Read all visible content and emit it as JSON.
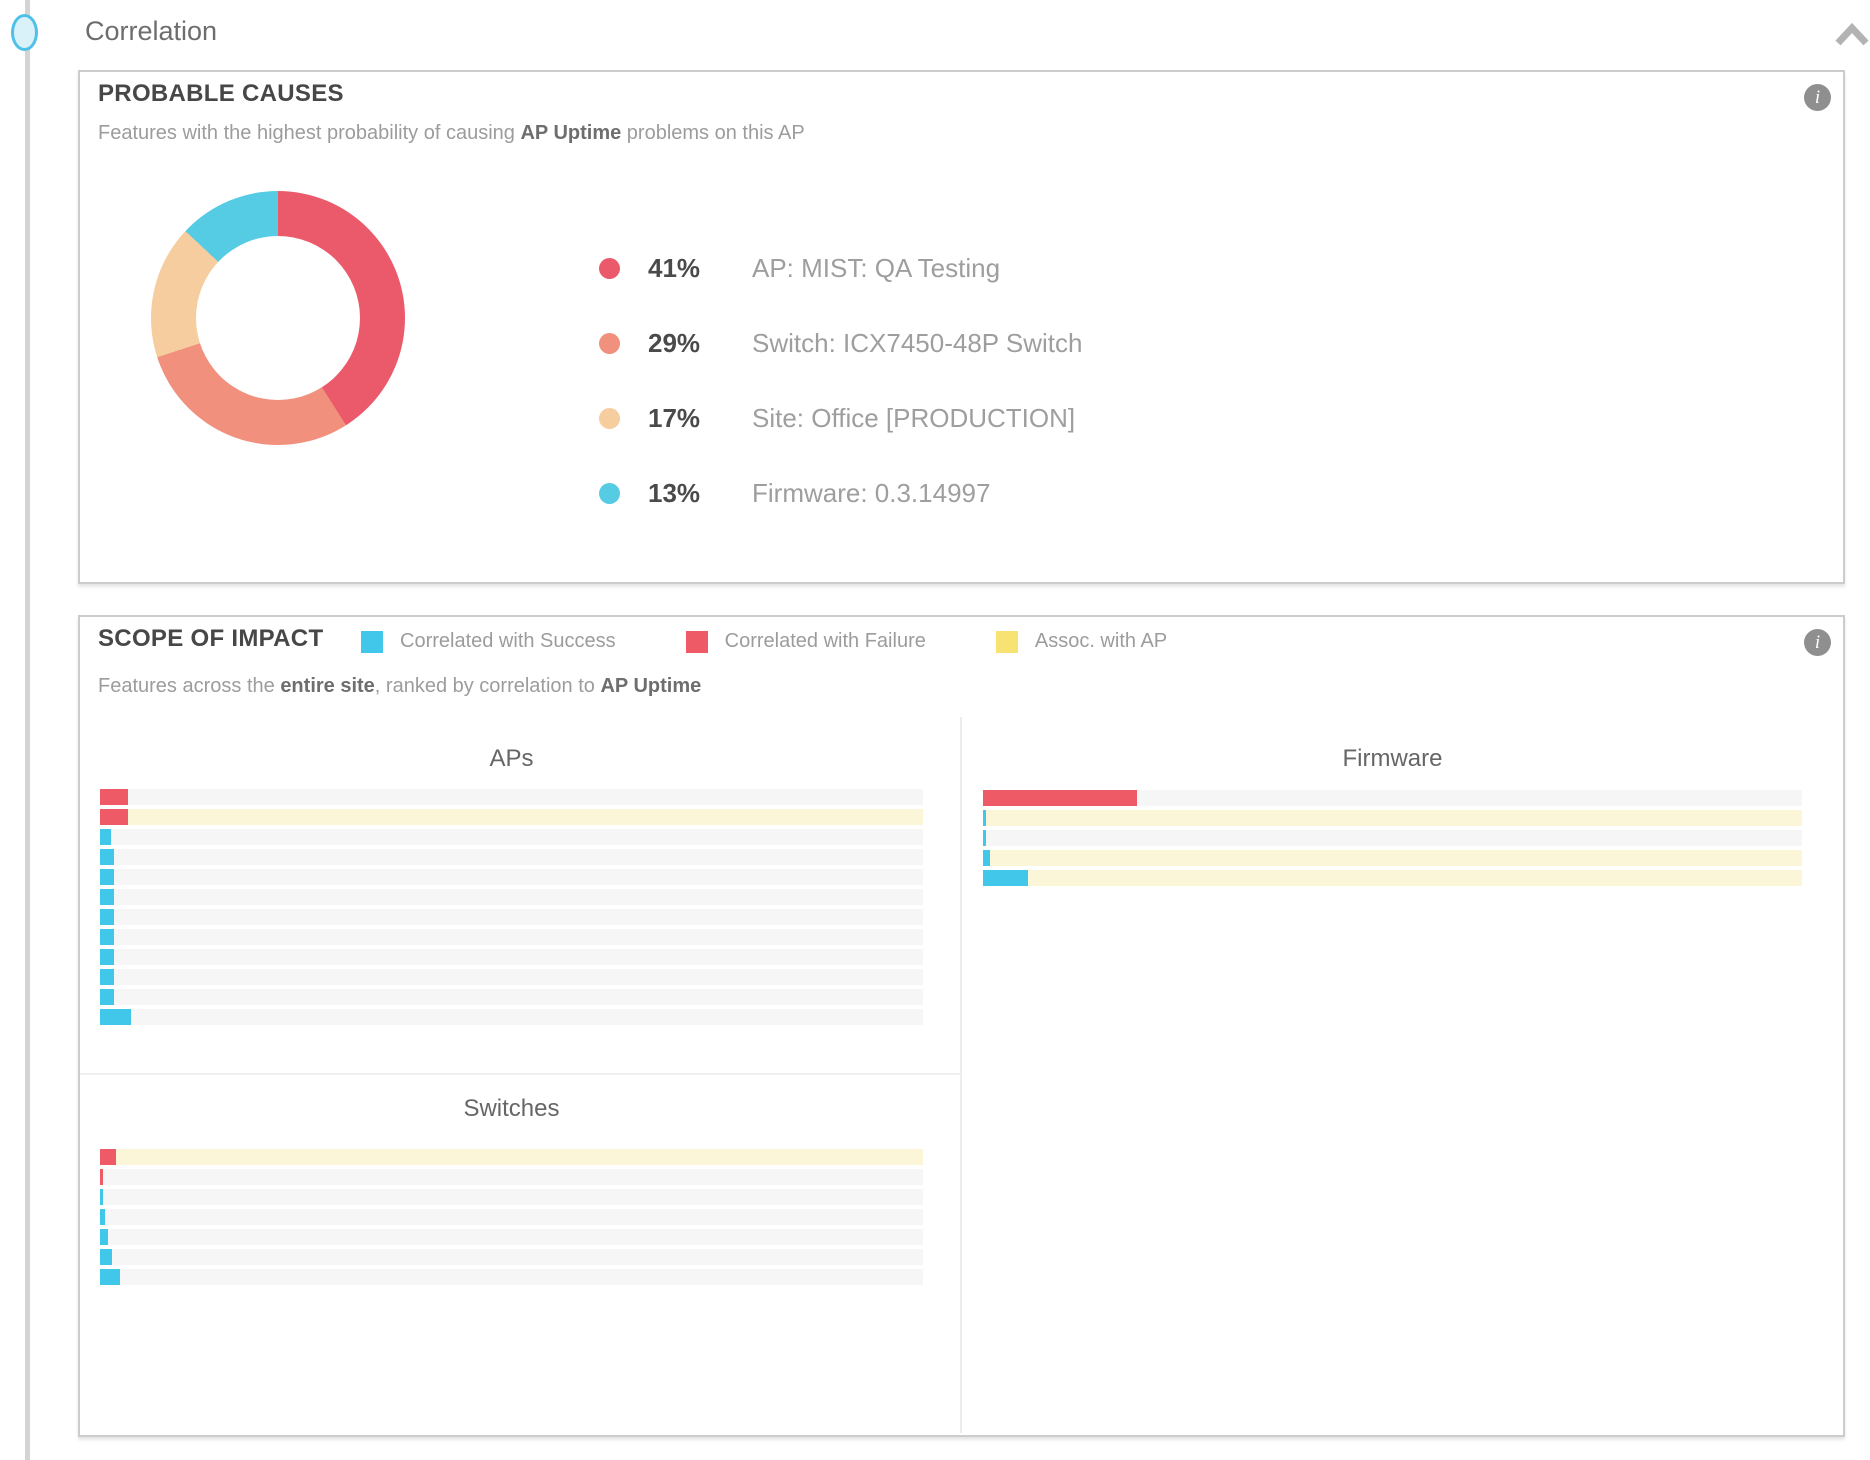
{
  "page": {
    "section_title": "Correlation",
    "collapse_icon": "chevron-up"
  },
  "colors": {
    "success": "#41c7e9",
    "failure": "#ee5b67",
    "assoc_swatch": "#f8e272",
    "track_plain": "#f6f6f6",
    "track_assoc": "#fcf6d8",
    "panel_border": "#cccccc",
    "accent_bullet": "#4fc1e8"
  },
  "probable_causes": {
    "title": "PROBABLE CAUSES",
    "subtitle_parts": [
      {
        "text": "Features with the highest probability of causing ",
        "bold": false
      },
      {
        "text": "AP Uptime",
        "bold": true
      },
      {
        "text": " problems on this AP",
        "bold": false
      }
    ],
    "info_icon": "i",
    "chart_data": {
      "type": "pie",
      "style": "donut",
      "title": "Probable causes of AP Uptime problems",
      "slices": [
        {
          "pct": 41,
          "pct_label": "41%",
          "label": "AP: MIST: QA Testing",
          "color": "#eb5a6b"
        },
        {
          "pct": 29,
          "pct_label": "29%",
          "label": "Switch: ICX7450-48P Switch",
          "color": "#f0907d"
        },
        {
          "pct": 17,
          "pct_label": "17%",
          "label": "Site: Office [PRODUCTION]",
          "color": "#f6cd9f"
        },
        {
          "pct": 13,
          "pct_label": "13%",
          "label": "Firmware: 0.3.14997",
          "color": "#56cbe4"
        }
      ],
      "legend_position": "right",
      "start_angle_deg": 0,
      "direction": "clockwise"
    }
  },
  "scope_of_impact": {
    "title": "SCOPE OF IMPACT",
    "info_icon": "i",
    "legend": [
      {
        "label": "Correlated with Success",
        "color": "#41c7e9"
      },
      {
        "label": "Correlated with Failure",
        "color": "#ee5b67"
      },
      {
        "label": "Assoc. with AP",
        "color": "#f8e272"
      }
    ],
    "subtitle_parts": [
      {
        "text": "Features across the ",
        "bold": false
      },
      {
        "text": "entire site",
        "bold": true
      },
      {
        "text": ", ranked by correlation to ",
        "bold": false
      },
      {
        "text": "AP Uptime",
        "bold": true
      }
    ],
    "chart_data": [
      {
        "type": "bar",
        "orientation": "horizontal",
        "title": "APs",
        "value_unit": "percent_of_track",
        "bars": [
          {
            "kind": "failure",
            "value": 3.4,
            "assoc_with_ap": false
          },
          {
            "kind": "failure",
            "value": 3.4,
            "assoc_with_ap": true
          },
          {
            "kind": "success",
            "value": 1.34,
            "assoc_with_ap": false
          },
          {
            "kind": "success",
            "value": 1.7,
            "assoc_with_ap": false
          },
          {
            "kind": "success",
            "value": 1.7,
            "assoc_with_ap": false
          },
          {
            "kind": "success",
            "value": 1.7,
            "assoc_with_ap": false
          },
          {
            "kind": "success",
            "value": 1.7,
            "assoc_with_ap": false
          },
          {
            "kind": "success",
            "value": 1.7,
            "assoc_with_ap": false
          },
          {
            "kind": "success",
            "value": 1.7,
            "assoc_with_ap": false
          },
          {
            "kind": "success",
            "value": 1.7,
            "assoc_with_ap": false
          },
          {
            "kind": "success",
            "value": 1.7,
            "assoc_with_ap": false
          },
          {
            "kind": "success",
            "value": 3.77,
            "assoc_with_ap": false
          }
        ]
      },
      {
        "type": "bar",
        "orientation": "horizontal",
        "title": "Switches",
        "value_unit": "percent_of_track",
        "bars": [
          {
            "kind": "failure",
            "value": 1.94,
            "assoc_with_ap": true
          },
          {
            "kind": "failure",
            "value": 0.36,
            "assoc_with_ap": false
          },
          {
            "kind": "success",
            "value": 0.36,
            "assoc_with_ap": false
          },
          {
            "kind": "success",
            "value": 0.61,
            "assoc_with_ap": false
          },
          {
            "kind": "success",
            "value": 0.97,
            "assoc_with_ap": false
          },
          {
            "kind": "success",
            "value": 1.46,
            "assoc_with_ap": false
          },
          {
            "kind": "success",
            "value": 2.43,
            "assoc_with_ap": false
          }
        ]
      },
      {
        "type": "bar",
        "orientation": "horizontal",
        "title": "Firmware",
        "value_unit": "percent_of_track",
        "bars": [
          {
            "kind": "failure",
            "value": 18.8,
            "assoc_with_ap": false
          },
          {
            "kind": "success",
            "value": 0.37,
            "assoc_with_ap": true
          },
          {
            "kind": "success",
            "value": 0.37,
            "assoc_with_ap": false
          },
          {
            "kind": "success",
            "value": 0.85,
            "assoc_with_ap": true
          },
          {
            "kind": "success",
            "value": 5.49,
            "assoc_with_ap": true
          }
        ]
      }
    ]
  }
}
